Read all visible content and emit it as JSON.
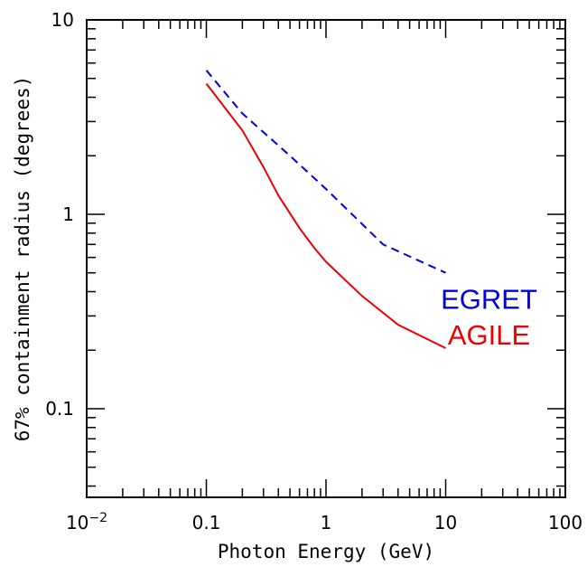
{
  "chart_data": {
    "type": "line",
    "title": "",
    "xlabel": "Photon Energy (GeV)",
    "ylabel": "67% containment radius (degrees)",
    "x_scale": "log",
    "y_scale": "log",
    "xlim": [
      0.01,
      100
    ],
    "ylim": [
      0.035,
      10
    ],
    "grid": false,
    "x_ticks": [
      {
        "value": 0.01,
        "base": "10",
        "exp": "−2"
      },
      {
        "value": 0.1,
        "label": "0.1"
      },
      {
        "value": 1,
        "label": "1"
      },
      {
        "value": 10,
        "label": "10"
      },
      {
        "value": 100,
        "label": "100"
      }
    ],
    "y_ticks": [
      {
        "value": 0.1,
        "label": "0.1"
      },
      {
        "value": 1,
        "label": "1"
      },
      {
        "value": 10,
        "label": "10"
      }
    ],
    "series": [
      {
        "name": "EGRET",
        "color": "#0000dd",
        "style": "dashed",
        "x": [
          0.1,
          0.2,
          0.5,
          1,
          3,
          10
        ],
        "y": [
          5.5,
          3.3,
          2.0,
          1.35,
          0.7,
          0.5
        ]
      },
      {
        "name": "AGILE",
        "color": "#ee0000",
        "style": "solid",
        "x": [
          0.1,
          0.2,
          0.3,
          0.4,
          0.6,
          0.8,
          1,
          2,
          4,
          10
        ],
        "y": [
          4.7,
          2.7,
          1.75,
          1.25,
          0.85,
          0.67,
          0.57,
          0.38,
          0.27,
          0.205
        ]
      }
    ]
  }
}
